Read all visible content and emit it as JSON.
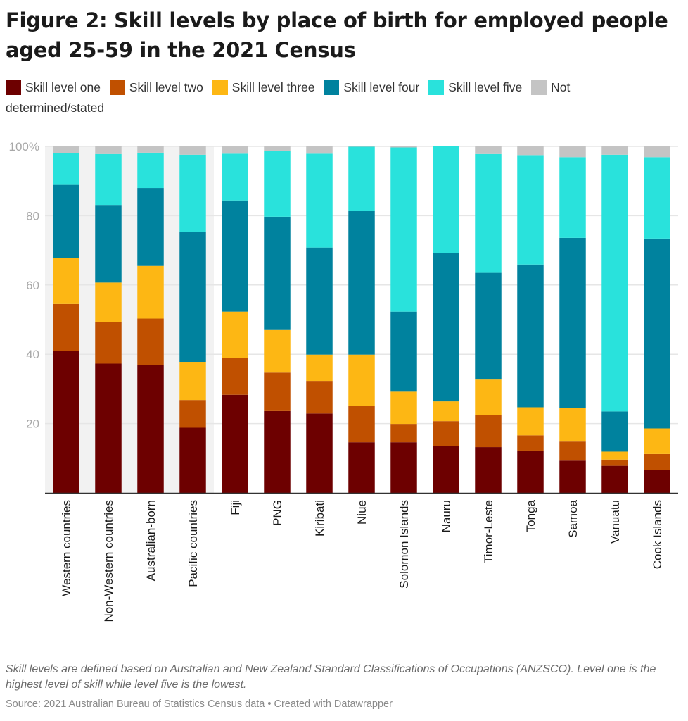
{
  "title": "Figure 2: Skill levels by place of birth for employed people aged 25-59 in the 2021 Census",
  "note": "Skill levels are defined based on Australian and New Zealand Standard Classifications of Occupations (ANZSCO). Level one is the highest level of skill while level five is the lowest.",
  "source": "Source: 2021 Australian Bureau of Statistics Census data • Created with Datawrapper",
  "chart_data": {
    "type": "bar",
    "stacked": true,
    "title": "Figure 2: Skill levels by place of birth for employed people aged 25-59 in the 2021 Census",
    "xlabel": "",
    "ylabel": "",
    "ylim": [
      0,
      100
    ],
    "yticks": [
      20,
      40,
      60,
      80,
      100
    ],
    "ytick_labels": [
      "20",
      "40",
      "60",
      "80",
      "100%"
    ],
    "grid": true,
    "legend_position": "top",
    "highlighted_categories": [
      "Western countries",
      "Non-Western countries",
      "Australian-born",
      "Pacific countries"
    ],
    "highlight_color": "#f2f2f2",
    "categories": [
      "Western countries",
      "Non-Western countries",
      "Australian-born",
      "Pacific countries",
      "Fiji",
      "PNG",
      "Kiribati",
      "Niue",
      "Solomon Islands",
      "Nauru",
      "Timor-Leste",
      "Tonga",
      "Samoa",
      "Vanuatu",
      "Cook Islands"
    ],
    "series": [
      {
        "name": "Skill level one",
        "color": "#6d0000",
        "values": [
          41.0,
          37.3,
          36.8,
          18.8,
          28.3,
          23.6,
          22.9,
          14.6,
          14.6,
          13.5,
          13.2,
          12.2,
          9.3,
          7.8,
          6.6
        ]
      },
      {
        "name": "Skill level two",
        "color": "#c05000",
        "values": [
          13.5,
          11.9,
          13.5,
          8.0,
          10.6,
          11.1,
          9.4,
          10.4,
          5.3,
          7.2,
          9.2,
          4.4,
          5.5,
          1.8,
          4.6
        ]
      },
      {
        "name": "Skill level three",
        "color": "#fdb714",
        "values": [
          13.2,
          11.5,
          15.2,
          11.0,
          13.4,
          12.5,
          7.6,
          14.9,
          9.3,
          5.7,
          10.5,
          8.1,
          9.7,
          2.3,
          7.4
        ]
      },
      {
        "name": "Skill level four",
        "color": "#00829e",
        "values": [
          21.2,
          22.4,
          22.5,
          37.5,
          32.1,
          32.5,
          30.9,
          41.6,
          23.1,
          42.8,
          30.6,
          41.2,
          49.1,
          11.6,
          54.8
        ]
      },
      {
        "name": "Skill level five",
        "color": "#29e2dc",
        "values": [
          9.2,
          14.7,
          10.2,
          22.3,
          13.5,
          18.9,
          27.1,
          18.4,
          47.4,
          30.8,
          34.3,
          31.6,
          23.3,
          74.1,
          23.5
        ]
      },
      {
        "name": "Not determined/stated",
        "color": "#c4c4c4",
        "values": [
          1.9,
          2.2,
          1.8,
          2.4,
          2.1,
          1.4,
          2.1,
          0.1,
          0.3,
          0.0,
          2.2,
          2.5,
          3.1,
          2.4,
          3.1
        ]
      }
    ]
  }
}
